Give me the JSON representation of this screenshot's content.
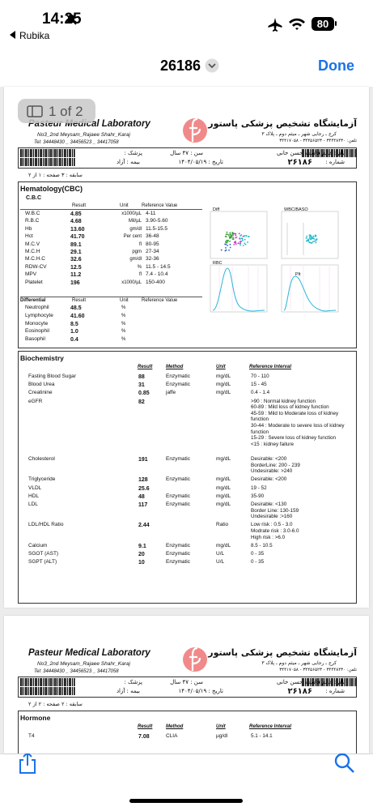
{
  "status_bar": {
    "time": "14:25",
    "back_app": "Rubika",
    "battery": "80"
  },
  "nav": {
    "title": "26186",
    "done": "Done"
  },
  "page_badge": "1 of 2",
  "report_header": {
    "lab_en": "Pasteur Medical Laboratory",
    "address_en": "No3_2nd Meysam_Rajaee Shahr_Karaj",
    "tel_en": "Tel: 34448430 _ 34456523 _ 34417058",
    "lab_fa": "آزمایشگاه تشخیص پزشکی پاستور",
    "address_fa": "کرج ـ رجایی شهر ـ میثم دوم ـ پلاک ۳",
    "tel_fa": "تلفن: ۳۴۴۴۸۴۳۰ - ۳۴۴۵۶۵۲۳ - ۳۴۴۱۷۰۵۸"
  },
  "patient": {
    "name": "نام : خانم فاطمه حسن خانی",
    "number_label": "شماره :",
    "number": "۲۶۱۸۶",
    "age": "سن : ۴۷ سال",
    "date": "تاریخ : ۱۴۰۴/۰۵/۱۹",
    "doctor": "پزشک :",
    "insurance": "بیمه : آزاد"
  },
  "pages": [
    {
      "page_info": "سابقه : ۳   صفحه : ۱ از ۲"
    },
    {
      "page_info": "سابقه : ۲   صفحه : ۲ از ۲"
    }
  ],
  "hematology": {
    "title": "Hematology(CBC)",
    "subtitle": "C.B.C",
    "columns": [
      "Result",
      "Unit",
      "Reference Value"
    ],
    "rows": [
      [
        "W.B.C",
        "4.85",
        "x1000/µL",
        "4-11"
      ],
      [
        "R.B.C",
        "4.68",
        "Mil/µL",
        "3.90-5.60"
      ],
      [
        "Hb",
        "13.60",
        "gm/dl",
        "11.5-15.5"
      ],
      [
        "Hct",
        "41.70",
        "Per cent",
        "36-48"
      ],
      [
        "M.C.V",
        "89.1",
        "fl",
        "80-95"
      ],
      [
        "M.C.H",
        "29.1",
        "pgm",
        "27-34"
      ],
      [
        "M.C.H.C",
        "32.6",
        "gm/dl",
        "32-36"
      ],
      [
        "RDW-CV",
        "12.5",
        "%",
        "11.5 - 14.5"
      ],
      [
        "MPV",
        "11.2",
        "fl",
        "7.4 - 10.4"
      ],
      [
        "Platelet",
        "196",
        "x1000/µL",
        "150-400"
      ]
    ],
    "differential_title": "Differential",
    "differential": [
      [
        "Neutrophil",
        "48.5",
        "%"
      ],
      [
        "Lymphocyte",
        "41.60",
        "%"
      ],
      [
        "Monocyte",
        "8.5",
        "%"
      ],
      [
        "Eosinophil",
        "1.0",
        "%"
      ],
      [
        "Basophil",
        "0.4",
        "%"
      ]
    ],
    "plots": [
      "Diff",
      "WBC/BASO",
      "RBC",
      "Plt"
    ]
  },
  "biochemistry": {
    "title": "Biochemistry",
    "columns": [
      "Result",
      "Method",
      "Unit",
      "Reference Interval"
    ],
    "rows": [
      {
        "name": "Fasting Blood Sugar",
        "result": "88",
        "method": "Enzymatic",
        "unit": "mg/dL",
        "ref": [
          "70 - 110"
        ]
      },
      {
        "name": "Blood Urea",
        "result": "31",
        "method": "Enzymatic",
        "unit": "mg/dL",
        "ref": [
          "15 - 45"
        ]
      },
      {
        "name": "Creatinine",
        "result": "0.85",
        "method": "jaffe",
        "unit": "mg/dL",
        "ref": [
          "0.4 - 1.4"
        ]
      },
      {
        "name": "eGFR",
        "result": "82",
        "ref": [
          ">90  : Normal kidney function",
          "60-89 : Mild loss of kidney function",
          "45-59 : Mild to Moderate loss of kidney",
          "function",
          "30-44 : Moderate to severe loss of kidney",
          "function",
          "15-29 : Severe loss of  kidney function",
          "<15   : kidney failure"
        ]
      },
      {
        "name": "Cholesterol",
        "result": "191",
        "method": "Enzymatic",
        "unit": "mg/dL",
        "ref": [
          "Desirable:     <200",
          "BorderLine:    200 - 239",
          "Undesirable:     >240"
        ]
      },
      {
        "name": "Triglyceride",
        "result": "128",
        "method": "Enzymatic",
        "unit": "mg/dL",
        "ref": [
          "Desirable:     <200"
        ]
      },
      {
        "name": "VLDL",
        "result": "25.6",
        "unit": "mg/dL",
        "ref": [
          "19 - 52"
        ]
      },
      {
        "name": "HDL",
        "result": "48",
        "method": "Enzymatic",
        "unit": "mg/dL",
        "ref": [
          "35-90"
        ]
      },
      {
        "name": "LDL",
        "result": "117",
        "method": "Enzymatic",
        "unit": "mg/dL",
        "ref": [
          "Desirable: <130",
          "Border Line: 130-159",
          "Undesirable :>160"
        ]
      },
      {
        "name": "LDL/HDL Ratio",
        "result": "2.44",
        "unit": "Ratio",
        "ref": [
          "Low risk :      0.5 - 3.0",
          "Modrate risk : 3.0-6.0",
          "High risk :        >6.0"
        ]
      },
      {
        "name": "Calcium",
        "result": "9.1",
        "method": "Enzymatic",
        "unit": "mg/dL",
        "ref": [
          "8.5 - 10.5"
        ]
      },
      {
        "name": "SGOT (AST)",
        "result": "20",
        "method": "Enzymatic",
        "unit": "U/L",
        "ref": [
          "0 - 35"
        ]
      },
      {
        "name": "SGPT (ALT)",
        "result": "10",
        "method": "Enzymatic",
        "unit": "U/L",
        "ref": [
          "0 - 35"
        ]
      }
    ]
  },
  "hormone": {
    "title": "Hormone",
    "rows": [
      {
        "name": "T4",
        "result": "7.08",
        "method": "CLIA",
        "unit": "µg/dl",
        "ref": [
          "5.1 - 14.1"
        ]
      }
    ]
  }
}
